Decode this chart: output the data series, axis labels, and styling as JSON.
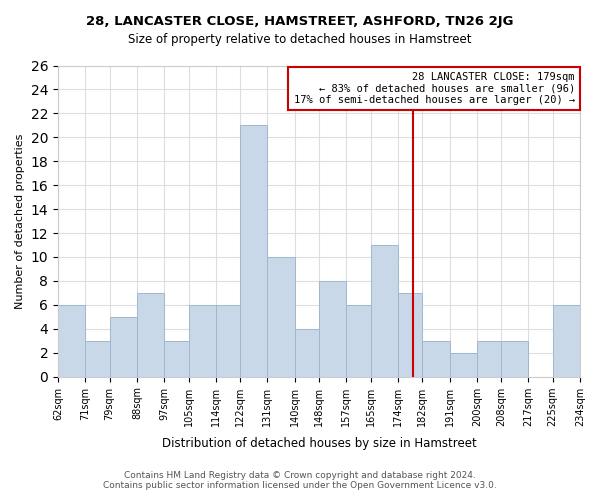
{
  "title": "28, LANCASTER CLOSE, HAMSTREET, ASHFORD, TN26 2JG",
  "subtitle": "Size of property relative to detached houses in Hamstreet",
  "xlabel": "Distribution of detached houses by size in Hamstreet",
  "ylabel": "Number of detached properties",
  "bar_color": "#c8d8e8",
  "bar_edge_color": "#a0b8cc",
  "bins": [
    62,
    71,
    79,
    88,
    97,
    105,
    114,
    122,
    131,
    140,
    148,
    157,
    165,
    174,
    182,
    191,
    200,
    208,
    217,
    225,
    234
  ],
  "counts": [
    6,
    3,
    5,
    7,
    3,
    6,
    6,
    21,
    10,
    4,
    8,
    6,
    11,
    7,
    3,
    2,
    3,
    3,
    0,
    6
  ],
  "tick_labels": [
    "62sqm",
    "71sqm",
    "79sqm",
    "88sqm",
    "97sqm",
    "105sqm",
    "114sqm",
    "122sqm",
    "131sqm",
    "140sqm",
    "148sqm",
    "157sqm",
    "165sqm",
    "174sqm",
    "182sqm",
    "191sqm",
    "200sqm",
    "208sqm",
    "217sqm",
    "225sqm",
    "234sqm"
  ],
  "annotation_title": "28 LANCASTER CLOSE: 179sqm",
  "annotation_line1": "← 83% of detached houses are smaller (96)",
  "annotation_line2": "17% of semi-detached houses are larger (20) →",
  "annotation_box_color": "#ffffff",
  "annotation_box_edge_color": "#cc0000",
  "vline_x": 179,
  "vline_color": "#cc0000",
  "ylim": [
    0,
    26
  ],
  "yticks": [
    0,
    2,
    4,
    6,
    8,
    10,
    12,
    14,
    16,
    18,
    20,
    22,
    24,
    26
  ],
  "footer_line1": "Contains HM Land Registry data © Crown copyright and database right 2024.",
  "footer_line2": "Contains public sector information licensed under the Open Government Licence v3.0.",
  "background_color": "#ffffff",
  "grid_color": "#dddddd"
}
